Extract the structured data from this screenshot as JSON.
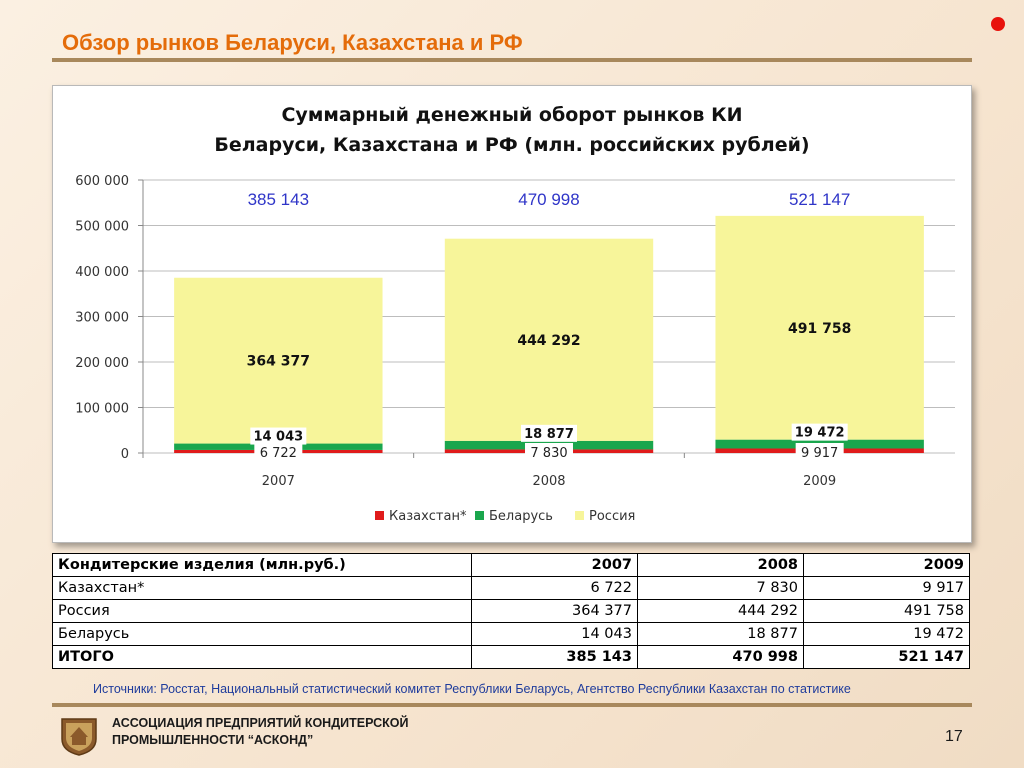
{
  "slide": {
    "title": "Обзор рынков Беларуси, Казахстана и РФ",
    "source": "Источники: Росстат, Национальный статистический комитет Республики Беларусь, Агентство Республики Казахстан по статистике",
    "org_line1": "АССОЦИАЦИЯ ПРЕДПРИЯТИЙ  КОНДИТЕРСКОЙ",
    "org_line2": "ПРОМЫШЛЕННОСТИ “АСКОНД”",
    "page_number": "17",
    "accent_color": "#e46c0a"
  },
  "chart_data": {
    "type": "bar",
    "stacked": true,
    "title_line1": "Суммарный денежный оборот рынков КИ",
    "title_line2": "Беларуси, Казахстана и РФ (млн. российских рублей)",
    "categories": [
      "2007",
      "2008",
      "2009"
    ],
    "series": [
      {
        "name": "Казахстан*",
        "values": [
          6722,
          7830,
          9917
        ],
        "labels": [
          "6 722",
          "7 830",
          "9 917"
        ],
        "color": "#e01b1b"
      },
      {
        "name": "Беларусь",
        "values": [
          14043,
          18877,
          19472
        ],
        "labels": [
          "14 043",
          "18 877",
          "19 472"
        ],
        "color": "#1aa64d"
      },
      {
        "name": "Россия",
        "values": [
          364377,
          444292,
          491758
        ],
        "labels": [
          "364 377",
          "444 292",
          "491 758"
        ],
        "color": "#f7f59a"
      }
    ],
    "totals": [
      "385 143",
      "470 998",
      "521 147"
    ],
    "totals_color": "#2f35c8",
    "ylim": [
      0,
      600000
    ],
    "yticks": [
      0,
      100000,
      200000,
      300000,
      400000,
      500000,
      600000
    ],
    "ytick_labels": [
      "0",
      "100 000",
      "200 000",
      "300 000",
      "400 000",
      "500 000",
      "600 000"
    ],
    "grid": true,
    "legend_position": "bottom"
  },
  "table": {
    "header": [
      "Кондитерские изделия (млн.руб.)",
      "2007",
      "2008",
      "2009"
    ],
    "rows": [
      [
        "Казахстан*",
        "6 722",
        "7 830",
        "9 917"
      ],
      [
        "Россия",
        "364 377",
        "444 292",
        "491 758"
      ],
      [
        "Беларусь",
        "14 043",
        "18 877",
        "19 472"
      ]
    ],
    "total": [
      "ИТОГО",
      "385 143",
      "470 998",
      "521 147"
    ]
  }
}
